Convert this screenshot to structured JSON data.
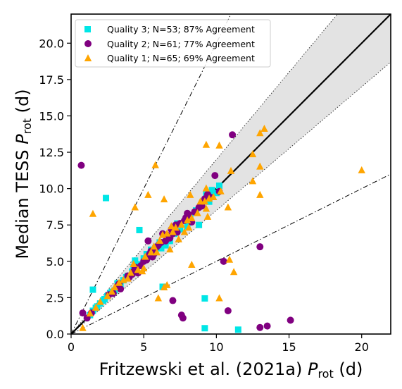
{
  "chart_data": {
    "type": "scatter",
    "xlabel": "Fritzewski et al. (2021a) ",
    "xlabel_sym": "P",
    "xlabel_sub": "rot",
    "xlabel_unit": " (d)",
    "ylabel": "Median TESS ",
    "ylabel_sym": "P",
    "ylabel_sub": "rot",
    "ylabel_unit": " (d)",
    "xlim": [
      0,
      22
    ],
    "ylim": [
      0,
      22
    ],
    "xticks": [
      "0",
      "5",
      "10",
      "15",
      "20"
    ],
    "yticks": [
      "0.0",
      "2.5",
      "5.0",
      "7.5",
      "10.0",
      "12.5",
      "15.0",
      "17.5",
      "20.0"
    ],
    "grid": false,
    "legend_position": "top-left",
    "band": {
      "lower_slope": 0.85,
      "upper_slope": 1.2,
      "color": "#e3e3e3"
    },
    "reference_lines": [
      {
        "kind": "identity",
        "slope": 1.0,
        "style": "solid"
      },
      {
        "kind": "harmonic",
        "slope": 2.0,
        "style": "dashdot"
      },
      {
        "kind": "harmonic",
        "slope": 0.5,
        "style": "dashdot"
      }
    ],
    "series": [
      {
        "name": "Quality 3; N=53; 87% Agreement",
        "marker": "square",
        "color": "#00e6e6",
        "points": [
          [
            2.4,
            9.35
          ],
          [
            1.5,
            3.05
          ],
          [
            4.7,
            7.15
          ],
          [
            6.3,
            3.25
          ],
          [
            9.2,
            2.45
          ],
          [
            9.2,
            0.4
          ],
          [
            11.5,
            0.3
          ],
          [
            10.2,
            10.2
          ],
          [
            9.7,
            9.9
          ],
          [
            9.3,
            9.6
          ],
          [
            8.8,
            7.5
          ],
          [
            8.2,
            8.0
          ],
          [
            8.0,
            7.4
          ],
          [
            7.5,
            7.2
          ],
          [
            7.1,
            6.9
          ],
          [
            6.7,
            6.5
          ],
          [
            6.2,
            5.9
          ],
          [
            5.8,
            5.9
          ],
          [
            5.3,
            5.4
          ],
          [
            5.0,
            5.2
          ],
          [
            4.6,
            4.8
          ],
          [
            4.4,
            5.05
          ],
          [
            4.2,
            4.3
          ],
          [
            3.8,
            3.9
          ],
          [
            3.4,
            3.3
          ],
          [
            3.2,
            3.5
          ],
          [
            3.0,
            3.0
          ],
          [
            2.7,
            2.8
          ],
          [
            2.5,
            2.6
          ],
          [
            2.2,
            2.3
          ],
          [
            2.0,
            2.1
          ],
          [
            1.7,
            1.8
          ],
          [
            1.5,
            1.6
          ],
          [
            1.3,
            1.3
          ],
          [
            5.5,
            5.8
          ],
          [
            5.9,
            6.0
          ],
          [
            6.5,
            6.1
          ],
          [
            4.8,
            4.7
          ],
          [
            3.6,
            3.7
          ],
          [
            9.6,
            9.6
          ],
          [
            9.5,
            9.1
          ],
          [
            10.0,
            9.7
          ],
          [
            7.9,
            7.9
          ],
          [
            6.8,
            6.4
          ],
          [
            5.2,
            5.5
          ],
          [
            4.3,
            4.6
          ],
          [
            3.9,
            4.0
          ],
          [
            2.8,
            2.9
          ],
          [
            2.3,
            2.4
          ],
          [
            1.8,
            1.9
          ],
          [
            7.3,
            7.6
          ],
          [
            6.1,
            6.3
          ],
          [
            8.6,
            8.5
          ]
        ]
      },
      {
        "name": "Quality 2; N=61; 77% Agreement",
        "marker": "circle",
        "color": "#800080",
        "points": [
          [
            0.7,
            11.6
          ],
          [
            0.8,
            1.45
          ],
          [
            1.1,
            1.1
          ],
          [
            1.4,
            1.45
          ],
          [
            2.9,
            2.8
          ],
          [
            3.2,
            3.3
          ],
          [
            3.4,
            3.1
          ],
          [
            4.2,
            4.1
          ],
          [
            4.3,
            4.3
          ],
          [
            4.5,
            4.5
          ],
          [
            4.6,
            4.2
          ],
          [
            4.8,
            4.7
          ],
          [
            5.0,
            5.0
          ],
          [
            5.2,
            5.1
          ],
          [
            5.3,
            6.4
          ],
          [
            5.4,
            5.5
          ],
          [
            5.5,
            5.7
          ],
          [
            5.7,
            5.5
          ],
          [
            5.8,
            5.9
          ],
          [
            6.0,
            6.1
          ],
          [
            6.2,
            6.3
          ],
          [
            6.3,
            6.9
          ],
          [
            6.5,
            6.4
          ],
          [
            6.8,
            6.6
          ],
          [
            7.0,
            6.9
          ],
          [
            7.1,
            7.3
          ],
          [
            7.3,
            7.0
          ],
          [
            7.5,
            7.6
          ],
          [
            7.8,
            7.8
          ],
          [
            7.9,
            8.0
          ],
          [
            8.1,
            8.2
          ],
          [
            8.3,
            7.7
          ],
          [
            8.5,
            8.4
          ],
          [
            8.8,
            8.7
          ],
          [
            9.0,
            8.8
          ],
          [
            9.2,
            9.3
          ],
          [
            9.6,
            9.4
          ],
          [
            9.9,
            10.9
          ],
          [
            10.2,
            9.8
          ],
          [
            11.1,
            13.7
          ],
          [
            10.5,
            5.0
          ],
          [
            10.8,
            1.6
          ],
          [
            13.0,
            6.0
          ],
          [
            7.6,
            1.3
          ],
          [
            7.7,
            1.1
          ],
          [
            7.0,
            2.3
          ],
          [
            13.0,
            0.45
          ],
          [
            13.5,
            0.55
          ],
          [
            15.1,
            0.95
          ],
          [
            3.3,
            3.45
          ],
          [
            3.9,
            4.0
          ],
          [
            4.4,
            4.6
          ],
          [
            5.9,
            6.0
          ],
          [
            6.6,
            6.8
          ],
          [
            7.2,
            7.5
          ],
          [
            8.0,
            8.3
          ],
          [
            9.4,
            9.6
          ],
          [
            2.6,
            2.7
          ],
          [
            4.0,
            3.9
          ],
          [
            5.6,
            5.3
          ],
          [
            6.9,
            7.2
          ]
        ]
      },
      {
        "name": "Quality 1; N=65; 69% Agreement",
        "marker": "triangle",
        "color": "#ffa500",
        "points": [
          [
            1.5,
            8.25
          ],
          [
            4.4,
            8.7
          ],
          [
            5.3,
            9.55
          ],
          [
            5.8,
            11.6
          ],
          [
            6.4,
            9.25
          ],
          [
            8.2,
            9.55
          ],
          [
            9.3,
            13.0
          ],
          [
            10.2,
            12.95
          ],
          [
            10.3,
            9.8
          ],
          [
            9.3,
            10.0
          ],
          [
            9.2,
            9.1
          ],
          [
            9.3,
            8.6
          ],
          [
            9.4,
            8.05
          ],
          [
            9.8,
            9.4
          ],
          [
            8.7,
            8.3
          ],
          [
            8.3,
            7.95
          ],
          [
            8.1,
            7.3
          ],
          [
            7.8,
            7.0
          ],
          [
            7.6,
            7.5
          ],
          [
            7.2,
            7.3
          ],
          [
            7.0,
            7.0
          ],
          [
            6.6,
            6.9
          ],
          [
            6.3,
            6.8
          ],
          [
            6.1,
            6.4
          ],
          [
            5.7,
            6.0
          ],
          [
            5.5,
            5.6
          ],
          [
            5.1,
            5.3
          ],
          [
            4.9,
            4.3
          ],
          [
            4.6,
            4.4
          ],
          [
            4.3,
            4.8
          ],
          [
            3.9,
            3.8
          ],
          [
            3.6,
            3.7
          ],
          [
            3.0,
            3.2
          ],
          [
            2.5,
            2.6
          ],
          [
            2.0,
            2.2
          ],
          [
            1.7,
            1.8
          ],
          [
            0.8,
            0.4
          ],
          [
            5.0,
            4.5
          ],
          [
            6.0,
            2.45
          ],
          [
            6.6,
            3.35
          ],
          [
            6.4,
            3.2
          ],
          [
            8.3,
            4.75
          ],
          [
            10.2,
            2.45
          ],
          [
            10.9,
            5.1
          ],
          [
            11.2,
            4.25
          ],
          [
            10.8,
            8.7
          ],
          [
            11.0,
            11.2
          ],
          [
            12.5,
            12.35
          ],
          [
            12.5,
            10.5
          ],
          [
            13.0,
            13.8
          ],
          [
            13.3,
            14.1
          ],
          [
            13.0,
            11.5
          ],
          [
            13.0,
            9.55
          ],
          [
            20.0,
            11.25
          ],
          [
            6.8,
            5.8
          ],
          [
            7.4,
            6.5
          ],
          [
            8.0,
            7.8
          ],
          [
            8.9,
            9.1
          ],
          [
            9.5,
            9.3
          ],
          [
            5.9,
            5.6
          ],
          [
            6.9,
            7.4
          ],
          [
            4.1,
            4.2
          ],
          [
            3.3,
            3.5
          ],
          [
            2.8,
            2.9
          ],
          [
            1.3,
            1.4
          ]
        ]
      }
    ]
  }
}
